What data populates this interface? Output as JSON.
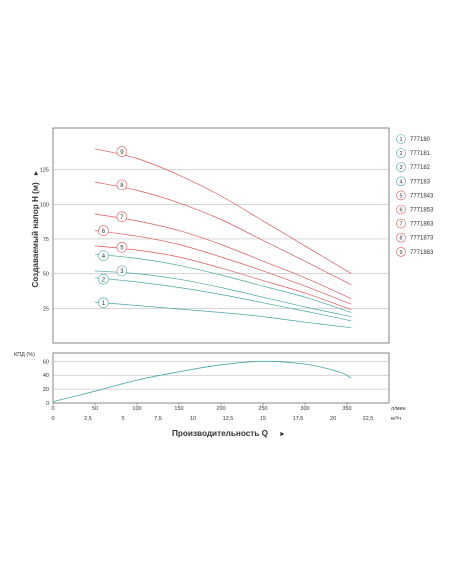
{
  "chart_data": [
    {
      "type": "line",
      "ylabel": "Создаваемый напор H (м)",
      "yticks": [
        25,
        50,
        75,
        100,
        125
      ],
      "ylim": [
        0,
        155
      ],
      "xlim": [
        0,
        400
      ],
      "grid": "horizontal",
      "legend_position": "right",
      "colors": {
        "blue": "#4aa6a2",
        "red": "#d9595c"
      },
      "series": [
        {
          "name": "777180",
          "marker": "1",
          "color": "blue",
          "label_at": [
            60,
            29
          ],
          "x": [
            50,
            100,
            150,
            200,
            250,
            300,
            355
          ],
          "y": [
            29.5,
            27,
            24.5,
            22,
            19,
            15,
            11
          ]
        },
        {
          "name": "777181",
          "marker": "2",
          "color": "blue",
          "label_at": [
            60,
            46
          ],
          "x": [
            50,
            100,
            150,
            200,
            250,
            300,
            355
          ],
          "y": [
            47,
            44,
            40,
            35,
            29,
            23,
            16
          ]
        },
        {
          "name": "777182",
          "marker": "3",
          "color": "blue",
          "label_at": [
            82,
            52
          ],
          "x": [
            50,
            100,
            150,
            200,
            250,
            300,
            355
          ],
          "y": [
            52,
            50,
            46,
            40,
            33,
            26,
            19
          ]
        },
        {
          "name": "777183",
          "marker": "4",
          "color": "blue",
          "label_at": [
            60,
            63
          ],
          "x": [
            50,
            100,
            150,
            200,
            250,
            300,
            355
          ],
          "y": [
            64,
            61,
            56,
            49,
            41,
            33,
            22
          ]
        },
        {
          "name": "7771843",
          "marker": "5",
          "color": "red",
          "label_at": [
            82,
            69
          ],
          "x": [
            50,
            100,
            150,
            200,
            250,
            300,
            355
          ],
          "y": [
            70,
            67,
            62,
            54,
            45,
            36,
            24
          ]
        },
        {
          "name": "7771853",
          "marker": "6",
          "color": "red",
          "label_at": [
            60,
            81
          ],
          "x": [
            50,
            100,
            150,
            200,
            250,
            300,
            355
          ],
          "y": [
            81,
            77,
            71,
            62,
            52,
            41,
            28
          ]
        },
        {
          "name": "7771863",
          "marker": "7",
          "color": "red",
          "label_at": [
            82,
            91
          ],
          "x": [
            50,
            100,
            150,
            200,
            250,
            300,
            355
          ],
          "y": [
            93,
            88,
            81,
            71,
            59,
            47,
            32
          ]
        },
        {
          "name": "7771873",
          "marker": "8",
          "color": "red",
          "label_at": [
            82,
            114
          ],
          "x": [
            50,
            100,
            150,
            200,
            250,
            300,
            355
          ],
          "y": [
            116,
            110,
            101,
            89,
            74,
            59,
            42
          ]
        },
        {
          "name": "7771883",
          "marker": "9",
          "color": "red",
          "label_at": [
            82,
            138
          ],
          "x": [
            50,
            100,
            150,
            200,
            250,
            300,
            355
          ],
          "y": [
            140,
            133,
            121,
            106,
            88,
            70,
            50
          ]
        }
      ]
    },
    {
      "type": "line",
      "ylabel": "КПД (%)",
      "yticks": [
        0,
        20,
        40,
        60
      ],
      "ylim": [
        0,
        72
      ],
      "xlim": [
        0,
        400
      ],
      "grid": "horizontal",
      "series": [
        {
          "color": "blue",
          "x": [
            0,
            50,
            100,
            150,
            200,
            250,
            300,
            340,
            355
          ],
          "y": [
            2,
            17,
            33,
            45,
            55,
            60,
            56,
            45,
            36
          ]
        }
      ]
    }
  ],
  "x_axis": {
    "lmin_ticks": [
      0,
      50,
      100,
      150,
      200,
      250,
      300,
      350
    ],
    "lmin_unit": "л/мин",
    "m3h_ticks": [
      "0",
      "2,5",
      "5",
      "7,5",
      "10",
      "12,5",
      "15",
      "17,5",
      "20",
      "22,5"
    ],
    "m3h_unit": "м³/ч",
    "label": "Производительность Q"
  }
}
